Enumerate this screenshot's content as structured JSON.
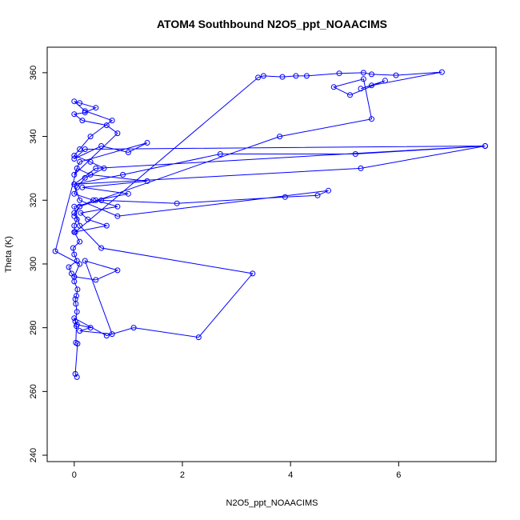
{
  "chart_data": {
    "type": "line",
    "title": "ATOM4 Southbound N2O5_ppt_NOAACIMS",
    "xlabel": "N2O5_ppt_NOAACIMS",
    "ylabel": "Theta (K)",
    "xlim": [
      -0.5,
      7.8
    ],
    "ylim": [
      238,
      368
    ],
    "x_ticks": [
      0,
      2,
      4,
      6
    ],
    "y_ticks": [
      240,
      260,
      280,
      300,
      320,
      340,
      360
    ],
    "x_tick_labels": [
      "0",
      "2",
      "4",
      "6"
    ],
    "y_tick_labels": [
      "240",
      "260",
      "280",
      "300",
      "320",
      "340",
      "360"
    ],
    "marker": "open-circle",
    "grid": false,
    "legend": "none",
    "colors": {
      "series": "#0000ff",
      "axes": "#000000",
      "background": "#ffffff"
    },
    "series": [
      {
        "x": [
          0.05,
          0.02,
          0.06,
          0.03,
          0.04,
          0.02,
          0.05,
          0.03,
          0.02,
          0.04,
          0.06,
          0.0,
          0.0,
          -0.05,
          -0.1,
          0.05,
          0.0,
          -0.02,
          0.1,
          0.0,
          0.6,
          0.25,
          0.12,
          0.8,
          0.4,
          1.0,
          0.15,
          1.35,
          0.3,
          0.05,
          -0.35,
          0.1,
          0.0,
          0.4,
          0.8,
          0.2,
          0.7,
          0.1,
          0.3,
          0.05,
          0.0,
          0.6,
          1.1,
          2.3,
          3.3,
          0.5,
          0.1,
          0.0,
          0.5,
          1.9,
          3.9,
          4.5,
          4.7,
          0.8,
          0.1,
          0.0,
          0.9,
          2.7,
          5.2,
          7.6,
          0.4,
          0.0,
          5.3,
          7.6,
          0.2,
          0.0,
          0.5,
          1.0,
          1.35,
          0.1,
          0.0,
          0.8,
          0.6,
          0.15,
          0.0,
          0.2,
          0.4,
          0.1,
          0.0,
          0.2,
          0.7,
          0.3,
          0.1,
          0.0,
          0.3,
          0.55,
          0.2,
          0.05,
          0.0,
          0.35,
          0.1,
          0.0,
          0.05,
          0.0,
          0.02,
          3.4,
          3.5,
          3.85,
          4.1,
          4.3,
          4.9,
          5.35,
          5.5,
          5.95,
          6.8,
          5.5,
          5.3,
          5.75,
          5.1,
          4.8,
          5.35,
          5.5,
          3.8,
          0.1,
          0.0
        ],
        "y": [
          264.5,
          265.5,
          275.0,
          275.3,
          280.5,
          282.0,
          285.0,
          287.5,
          289.0,
          290.0,
          292.0,
          294.5,
          296.0,
          297.0,
          299.0,
          301.0,
          303.0,
          305.0,
          307.0,
          310.0,
          312.0,
          314.0,
          316.0,
          318.0,
          320.0,
          322.0,
          324.0,
          326.0,
          328.0,
          330.0,
          304.0,
          300.0,
          296.0,
          295.0,
          298.0,
          301.0,
          278.0,
          279.0,
          280.0,
          281.0,
          283.0,
          277.5,
          280.0,
          277.0,
          297.0,
          305.0,
          312.0,
          318.0,
          320.0,
          319.0,
          321.0,
          321.5,
          323.0,
          315.0,
          320.0,
          325.0,
          328.0,
          334.5,
          334.5,
          337.0,
          330.0,
          325.0,
          330.0,
          337.0,
          336.0,
          333.0,
          337.0,
          335.0,
          338.0,
          332.0,
          328.0,
          341.0,
          343.5,
          345.0,
          347.0,
          347.5,
          349.0,
          350.5,
          351.0,
          348.0,
          345.0,
          340.0,
          336.0,
          334.0,
          332.0,
          330.0,
          327.0,
          324.0,
          322.0,
          320.0,
          318.0,
          316.0,
          314.0,
          312.0,
          310.0,
          358.5,
          359.0,
          358.7,
          359.0,
          359.0,
          359.8,
          360.0,
          359.5,
          359.2,
          360.2,
          356.0,
          355.0,
          357.5,
          353.0,
          355.5,
          358.0,
          345.5,
          340.0,
          318.0,
          315.0
        ]
      }
    ]
  }
}
